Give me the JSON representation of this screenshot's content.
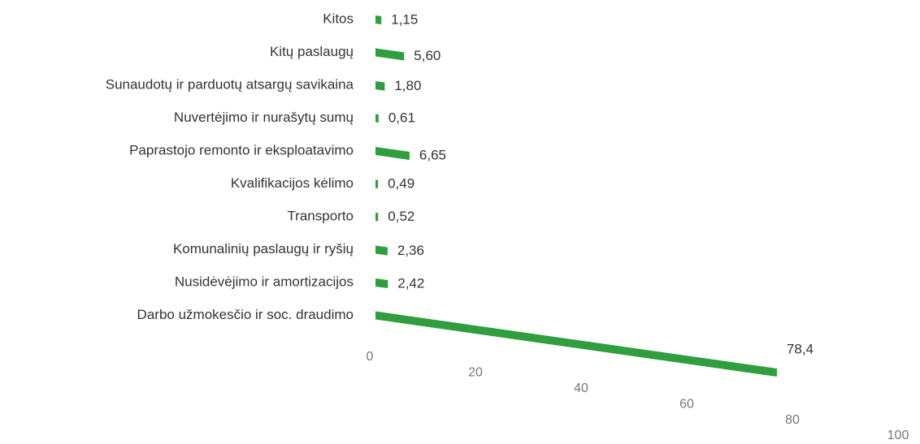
{
  "chart_data": {
    "type": "bar",
    "orientation": "horizontal",
    "categories": [
      "Kitos",
      "Kitų paslaugų",
      "Sunaudotų ir parduotų atsargų savikaina",
      "Nuvertėjimo ir nurašytų sumų",
      "Paprastojo remonto ir eksploatavimo",
      "Kvalifikacijos kėlimo",
      "Transporto",
      "Komunalinių paslaugų ir ryšių",
      "Nusidėvėjimo ir amortizacijos",
      "Darbo užmokesčio ir soc. draudimo"
    ],
    "values": [
      1.15,
      5.6,
      1.8,
      0.61,
      6.65,
      0.49,
      0.52,
      2.36,
      2.42,
      78.4
    ],
    "value_labels": [
      "1,15",
      "5,60",
      "1,80",
      "0,61",
      "6,65",
      "0,49",
      "0,52",
      "2,36",
      "2,42",
      "78,4"
    ],
    "color": "#2e9e3e",
    "xlim": [
      0,
      100
    ],
    "xticks": [
      0,
      20,
      40,
      60,
      80,
      100
    ],
    "grid": false
  }
}
